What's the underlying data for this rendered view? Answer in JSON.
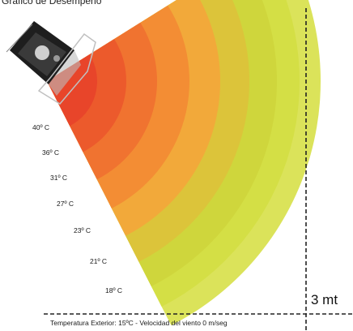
{
  "title": "Gráfico de Desempeño",
  "distance_label": "3 mt",
  "conditions": "Temperatura Exterior: 15ºC - Velocidad del viento 0 m/seg",
  "zones": [
    {
      "label": "40º C",
      "color": "#e8452a"
    },
    {
      "label": "36º C",
      "color": "#ec5a2c"
    },
    {
      "label": "31º C",
      "color": "#f07330"
    },
    {
      "label": "27º C",
      "color": "#f38d34"
    },
    {
      "label": "23º C",
      "color": "#f2a93a"
    },
    {
      "label": "21º C",
      "color": "#dcc43a"
    },
    {
      "label": "18º C",
      "color": "#cfd63c"
    },
    {
      "label": "",
      "color": "#d4df45"
    },
    {
      "label": "",
      "color": "#dbe35a"
    }
  ],
  "icons": {
    "heater": "patio-heater-icon"
  }
}
